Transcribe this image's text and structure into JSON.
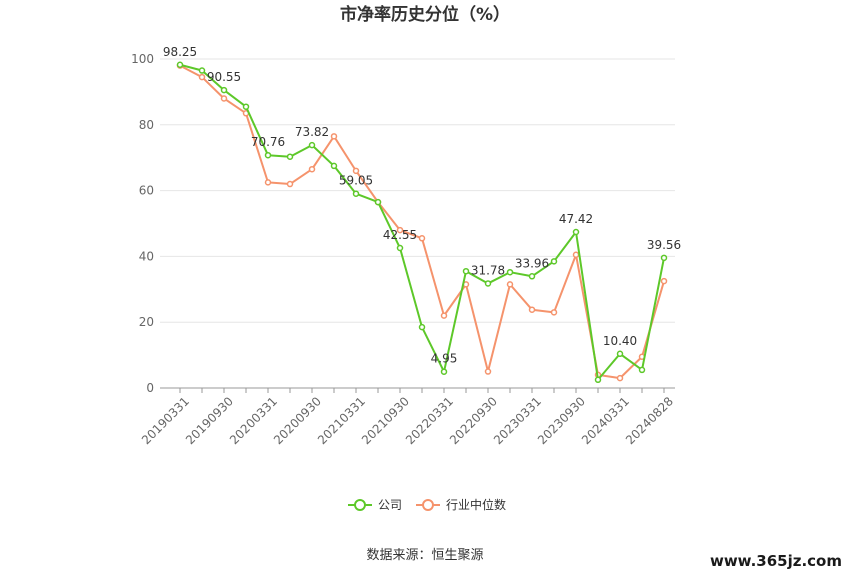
{
  "chart_data": {
    "type": "line",
    "title": "市净率历史分位（%）",
    "xlabel": "",
    "ylabel": "",
    "ylim": [
      0,
      100
    ],
    "yticks": [
      0,
      20,
      40,
      60,
      80,
      100
    ],
    "grid": true,
    "legend_position": "bottom-center",
    "x_tick_labels": [
      "20190331",
      "20190930",
      "20200331",
      "20200930",
      "20210331",
      "20210930",
      "20220331",
      "20220930",
      "20230331",
      "20230930",
      "20240331",
      "20240828"
    ],
    "series": [
      {
        "name": "公司",
        "color": "#5dc829",
        "values": [
          98.25,
          96.5,
          90.55,
          85.5,
          70.76,
          70.3,
          73.82,
          67.5,
          59.05,
          56.5,
          42.55,
          18.5,
          4.95,
          35.5,
          31.78,
          35.2,
          33.96,
          38.5,
          47.42,
          2.5,
          10.4,
          5.5,
          39.56
        ],
        "labels": [
          "98.25",
          "",
          "90.55",
          "",
          "70.76",
          "",
          "73.82",
          "",
          "59.05",
          "",
          "42.55",
          "",
          "4.95",
          "",
          "31.78",
          "",
          "33.96",
          "",
          "47.42",
          "",
          "10.40",
          "",
          "39.56"
        ]
      },
      {
        "name": "行业中位数",
        "color": "#f5936c",
        "values": [
          98.0,
          94.5,
          88.0,
          83.5,
          62.5,
          62.0,
          66.5,
          76.5,
          66.0,
          56.5,
          48.0,
          45.5,
          22.0,
          31.5,
          5.0,
          31.5,
          23.8,
          23.0,
          40.5,
          4.0,
          3.0,
          9.5,
          32.5
        ]
      }
    ]
  },
  "source_text": "数据来源：恒生聚源",
  "watermark": "www.365jz.com"
}
